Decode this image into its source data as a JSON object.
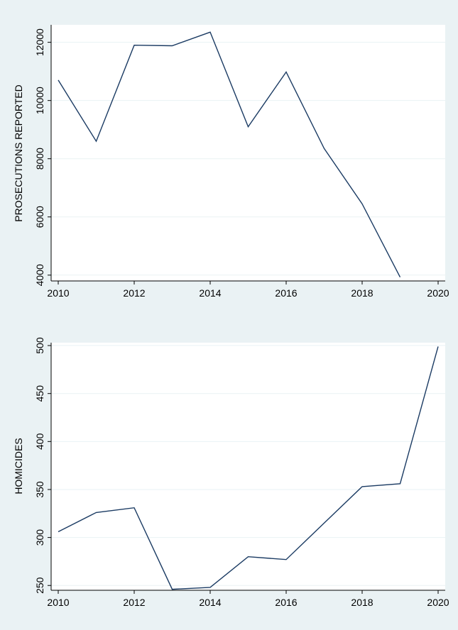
{
  "chart_data": [
    {
      "type": "line",
      "title": "",
      "xlabel": "",
      "ylabel": "PROSECUTIONS  REPORTED",
      "xlim": [
        2010,
        2020
      ],
      "ylim": [
        3800,
        12600
      ],
      "xticks": [
        2010,
        2012,
        2014,
        2016,
        2018,
        2020
      ],
      "yticks": [
        4000,
        6000,
        8000,
        10000,
        12000
      ],
      "grid": true,
      "series": [
        {
          "x": [
            2010,
            2011,
            2012,
            2013,
            2014,
            2015,
            2016,
            2017,
            2018,
            2019
          ],
          "values": [
            10700,
            8600,
            11900,
            11880,
            12350,
            9100,
            10980,
            8350,
            6450,
            3930
          ]
        }
      ],
      "colors": {
        "line": "#1b3b63",
        "background": "#eaf2f4",
        "plot": "#ffffff"
      }
    },
    {
      "type": "line",
      "title": "",
      "xlabel": "",
      "ylabel": "HOMICIDES",
      "xlim": [
        2010,
        2020
      ],
      "ylim": [
        245,
        503
      ],
      "xticks": [
        2010,
        2012,
        2014,
        2016,
        2018,
        2020
      ],
      "yticks": [
        250,
        300,
        350,
        400,
        450,
        500
      ],
      "grid": true,
      "series": [
        {
          "x": [
            2010,
            2011,
            2012,
            2013,
            2014,
            2015,
            2016,
            2017,
            2018,
            2019,
            2020
          ],
          "values": [
            306,
            326,
            331,
            246,
            248,
            280,
            277,
            315,
            353,
            356,
            499
          ]
        }
      ],
      "colors": {
        "line": "#1b3b63",
        "background": "#eaf2f4",
        "plot": "#ffffff"
      }
    }
  ]
}
